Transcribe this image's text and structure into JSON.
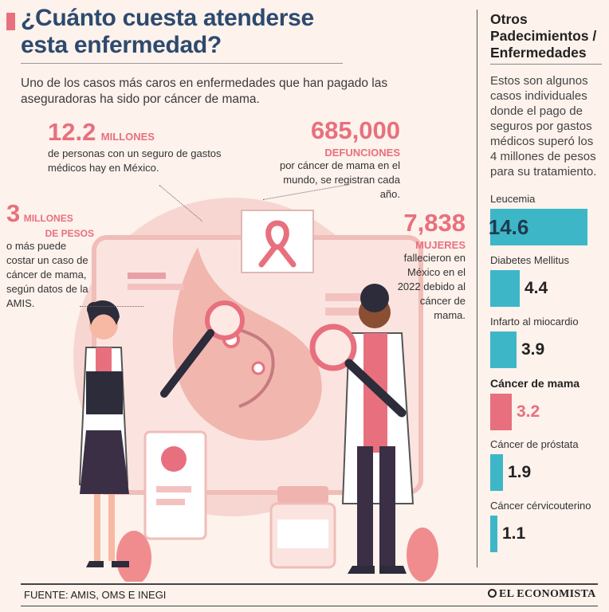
{
  "header": {
    "title": "¿Cuánto cuesta atenderse esta enfermedad?",
    "intro": "Uno de los casos más caros en enfermedades que han pagado las aseguradoras ha sido por cáncer de mama."
  },
  "stats": [
    {
      "value": "12.2",
      "unit": "MILLONES",
      "description": "de personas con un seguro de gastos médicos hay en México."
    },
    {
      "value": "685,000",
      "unit": "DEFUNCIONES",
      "description": "por cáncer de mama en el mundo, se registran cada año."
    },
    {
      "value": "3",
      "unit": "MILLONES",
      "unit2": "DE PESOS",
      "description": "o más puede costar un caso de cáncer de mama, según datos de la AMIS."
    },
    {
      "value": "7,838",
      "unit": "MUJERES",
      "description": "fallecieron en México en el 2022 debido al cáncer de mama."
    }
  ],
  "sidebar": {
    "title": "Otros Padecimientos / Enfermedades",
    "intro": "Estos son algunos casos individuales donde el pago de seguros por gastos médicos superó los 4 millones de pesos para su tratamiento."
  },
  "chart_data": {
    "type": "bar",
    "categories": [
      "Leucemia",
      "Diabetes Mellitus",
      "Infarto al miocardio",
      "Cáncer de mama",
      "Cáncer de próstata",
      "Cáncer cérvicouterino"
    ],
    "values": [
      14.6,
      4.4,
      3.9,
      3.2,
      1.9,
      1.1
    ],
    "value_labels": [
      "14.6",
      "4.4",
      "3.9",
      "3.2",
      "1.9",
      "1.1"
    ],
    "highlight": "Cáncer de mama",
    "colors": {
      "default": "#3db7c7",
      "highlight": "#e8707e"
    },
    "orientation": "horizontal"
  },
  "footer": {
    "source": "FUENTE: AMIS, OMS E INEGI",
    "brand": "EL ECONOMISTA"
  },
  "colors": {
    "accent": "#e8707e",
    "title": "#2d4a6e",
    "bar": "#3db7c7",
    "background": "#fdf2ec"
  }
}
